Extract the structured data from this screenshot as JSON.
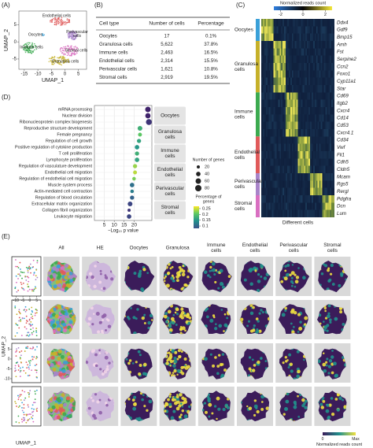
{
  "figure": {
    "A": {
      "label": "(A)",
      "xlabel": "UMAP_1",
      "ylabel": "UMAP_2",
      "xlim": [
        -17,
        8
      ],
      "ylim": [
        -8,
        9
      ],
      "xticks": [
        -15,
        -10,
        -5,
        0,
        5
      ],
      "yticks": [
        -5,
        0,
        5
      ],
      "clusters": [
        {
          "lines": [
            "Endothelial cells"
          ],
          "color": "#e05a5a"
        },
        {
          "lines": [
            "Oocytes"
          ],
          "color": "#3aa0d8"
        },
        {
          "lines": [
            "Perivascular",
            "cells"
          ],
          "color": "#a884c9"
        },
        {
          "lines": [
            "Immune cells"
          ],
          "color": "#3caa50"
        },
        {
          "lines": [
            "Stromal cells"
          ],
          "color": "#d96fc1"
        },
        {
          "lines": [
            "Granulosa cells"
          ],
          "color": "#c6b12a"
        }
      ]
    },
    "B": {
      "label": "(B)",
      "header": [
        "Cell type",
        "Number of cells",
        "Percentage"
      ],
      "rows": [
        [
          "Oocytes",
          "17",
          "0.1%"
        ],
        [
          "Granulosa cells",
          "5,622",
          "37.8%"
        ],
        [
          "Immune cells",
          "2,463",
          "16.5%"
        ],
        [
          "Endothelial cells",
          "2,314",
          "15.5%"
        ],
        [
          "Perivascular cells",
          "1,621",
          "10.8%"
        ],
        [
          "Stromal cells",
          "2,919",
          "19.5%"
        ]
      ],
      "row_colors": [
        "#3aa0d8",
        "#c6b12a",
        "#3caa50",
        "#e05a5a",
        "#a884c9",
        "#d96fc1"
      ]
    },
    "C": {
      "label": "(C)",
      "xlabel": "Different cells",
      "colorbar": {
        "title": "Normalized reads count",
        "lim": [
          -2.6,
          2.6
        ],
        "ticks": [
          -2,
          0,
          2
        ]
      },
      "groups": [
        {
          "lines": [
            "Oocytes"
          ],
          "color": "#3aa0d8",
          "genes": [
            "Ddx4",
            "Gdf9",
            "Bmp15"
          ]
        },
        {
          "lines": [
            "Granulosa",
            "cells"
          ],
          "color": "#c6b12a",
          "genes": [
            "Amh",
            "Fst",
            "Serpine2",
            "Ccn2",
            "Foxo1",
            "Cyp11a1",
            "Star"
          ]
        },
        {
          "lines": [
            "Immune",
            "cells"
          ],
          "color": "#3caa50",
          "genes": [
            "Cd69",
            "Itgb2",
            "Cxcr4",
            "Cd14",
            "Cd53",
            "Cxcr4.1"
          ]
        },
        {
          "lines": [
            "Endothelial",
            "cells"
          ],
          "color": "#e05a5a",
          "genes": [
            "Cd34",
            "Vwf",
            "Fli1",
            "Cdh5",
            "Cldn5"
          ]
        },
        {
          "lines": [
            "Perivascular",
            "cells"
          ],
          "color": "#a884c9",
          "genes": [
            "Mcam",
            "Rgs5",
            "Rergl"
          ]
        },
        {
          "lines": [
            "Stromal",
            "cells"
          ],
          "color": "#d96fc1",
          "genes": [
            "Pdgfra",
            "Dcn",
            "Lum"
          ]
        }
      ]
    },
    "D": {
      "label": "(D)",
      "xlabel": "−Log₁₀ p value",
      "xlim": [
        0,
        29
      ],
      "xticks": [
        5,
        10,
        15,
        20
      ],
      "terms": [
        {
          "term": "mRNA processing",
          "logp": 27,
          "genes": 60,
          "ratio": 0.1
        },
        {
          "term": "Nuclear division",
          "logp": 27,
          "genes": 55,
          "ratio": 0.1
        },
        {
          "term": "Ribonucleoprotein complex biogenesis",
          "logp": 27.5,
          "genes": 70,
          "ratio": 0.11
        },
        {
          "term": "Reproductive structure development",
          "logp": 23,
          "genes": 45,
          "ratio": 0.2
        },
        {
          "term": "Female pregnancy",
          "logp": 23,
          "genes": 30,
          "ratio": 0.22
        },
        {
          "term": "Regulation of cell growth",
          "logp": 22.5,
          "genes": 35,
          "ratio": 0.19
        },
        {
          "term": "Positive regulation of cytokine production",
          "logp": 21.5,
          "genes": 40,
          "ratio": 0.18
        },
        {
          "term": "T cell proliferation",
          "logp": 21.5,
          "genes": 35,
          "ratio": 0.2
        },
        {
          "term": "Lymphocyte proliferation",
          "logp": 21.5,
          "genes": 40,
          "ratio": 0.19
        },
        {
          "term": "Regulation of vasculature development",
          "logp": 20.5,
          "genes": 35,
          "ratio": 0.24
        },
        {
          "term": "Endothelial cell migration",
          "logp": 20.5,
          "genes": 30,
          "ratio": 0.25
        },
        {
          "term": "Regulation of endothelial cell migration",
          "logp": 20,
          "genes": 25,
          "ratio": 0.23
        },
        {
          "term": "Muscle system process",
          "logp": 19,
          "genes": 40,
          "ratio": 0.15
        },
        {
          "term": "Actin-mediated cell contraction",
          "logp": 19,
          "genes": 25,
          "ratio": 0.16
        },
        {
          "term": "Regulation of blood circulation",
          "logp": 19,
          "genes": 35,
          "ratio": 0.14
        },
        {
          "term": "Extracellular matrix organization",
          "logp": 18,
          "genes": 45,
          "ratio": 0.12
        },
        {
          "term": "Collagen fibril organization",
          "logp": 17.5,
          "genes": 20,
          "ratio": 0.11
        },
        {
          "term": "Leukocyte migration",
          "logp": 17.5,
          "genes": 40,
          "ratio": 0.12
        }
      ],
      "groups": [
        [
          "Oocytes"
        ],
        [
          "Granulosa",
          "cells"
        ],
        [
          "Immune",
          "cells"
        ],
        [
          "Endothelial",
          "cells"
        ],
        [
          "Perivascular",
          "cells"
        ],
        [
          "Stromal",
          "cells"
        ]
      ],
      "size_title": "Number of genes",
      "size_ticks": [
        20,
        40,
        60,
        80
      ],
      "color_title": [
        "Percentage of",
        "genes"
      ],
      "color_lim": [
        0.08,
        0.27
      ],
      "color_ticks": [
        0.25,
        0.2,
        0.15,
        0.1
      ]
    },
    "E": {
      "label": "(E)",
      "xlabel": "UMAP_1",
      "ylabel": "UMAP_2",
      "xlim": [
        -13,
        8
      ],
      "ylim": [
        -12,
        8
      ],
      "xticks": [
        -10,
        -5,
        0,
        5
      ],
      "yticks": [
        -10,
        -5,
        0,
        5
      ],
      "columns": [
        [
          "All"
        ],
        [
          "HE"
        ],
        [
          "Oocytes"
        ],
        [
          "Granulosa"
        ],
        [
          "Immune",
          "cells"
        ],
        [
          "Endothelial",
          "cells"
        ],
        [
          "Perivascular",
          "cells"
        ],
        [
          "Stromal",
          "cells"
        ]
      ],
      "colorbar": {
        "min_label": "0",
        "max_label": "Max",
        "title": "Normalized reads count"
      }
    }
  }
}
